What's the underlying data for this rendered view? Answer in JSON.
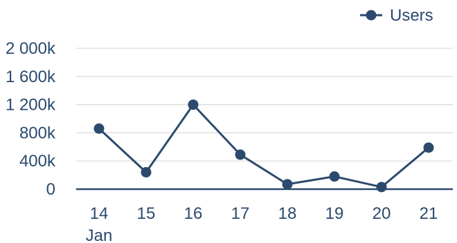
{
  "chart_data": {
    "type": "line",
    "title": "",
    "xlabel": "",
    "ylabel": "",
    "categories": [
      "14",
      "15",
      "16",
      "17",
      "18",
      "19",
      "20",
      "21"
    ],
    "x_sublabel": "Jan",
    "series": [
      {
        "name": "Users",
        "values": [
          860000,
          240000,
          1200000,
          490000,
          70000,
          180000,
          30000,
          590000
        ]
      }
    ],
    "ylim": [
      0,
      2000000
    ],
    "yticks": [
      0,
      400000,
      800000,
      1200000,
      1600000,
      2000000
    ],
    "ytick_labels": [
      "0",
      "400k",
      "800k",
      "1 200k",
      "1 600k",
      "2 000k"
    ],
    "grid": true,
    "legend_position": "top-right",
    "colors": {
      "series": "#2b4a6d",
      "grid": "#d9d9d9",
      "text": "#2b4a6d"
    }
  }
}
